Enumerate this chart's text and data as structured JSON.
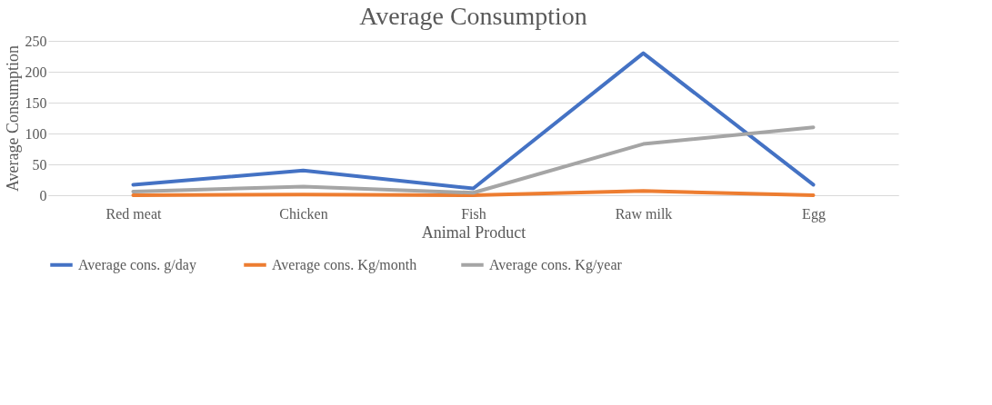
{
  "chart_data": {
    "type": "line",
    "title": "Average Consumption",
    "xlabel": "Animal Product",
    "ylabel": "Average Consumption",
    "categories": [
      "Red meat",
      "Chicken",
      "Fish",
      "Raw milk",
      "Egg"
    ],
    "series": [
      {
        "name": "Average cons.  g/day",
        "color": "#4472c4",
        "values": [
          17,
          40,
          11,
          230,
          17
        ]
      },
      {
        "name": "Average cons. Kg/month",
        "color": "#ed7d31",
        "values": [
          0,
          1,
          0,
          7,
          0
        ]
      },
      {
        "name": "Average cons. Kg/year",
        "color": "#a5a5a5",
        "values": [
          6,
          14,
          4,
          83,
          110
        ]
      }
    ],
    "ylim": [
      0,
      250
    ],
    "yticks": [
      0,
      50,
      100,
      150,
      200,
      250
    ],
    "grid": "y",
    "legend": "bottom",
    "marker": "none",
    "line_style": "solid"
  }
}
